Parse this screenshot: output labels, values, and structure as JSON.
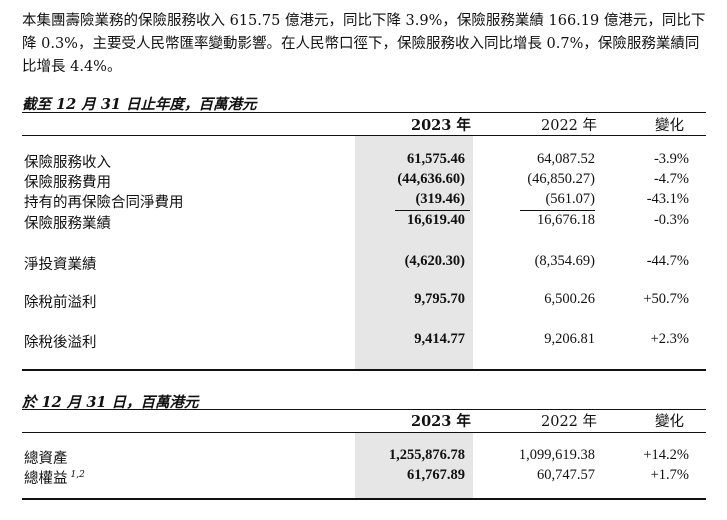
{
  "intro_paragraph": "本集團壽險業務的保險服務收入 615.75 億港元，同比下降 3.9%，保險服務業績 166.19 億港元，同比下降 0.3%，主要受人民幣匯率變動影響。在人民幣口徑下，保險服務收入同比增長 0.7%，保險服務業績同比增長 4.4%。",
  "table1": {
    "title": "截至 12 月 31 日止年度，百萬港元",
    "headers": {
      "y2023": "2023 年",
      "y2022": "2022 年",
      "change": "變化"
    },
    "rows": [
      {
        "label": "保險服務收入",
        "v2023": "61,575.46",
        "v2022": "64,087.52",
        "change": "-3.9%"
      },
      {
        "label": "保險服務費用",
        "v2023": "(44,636.60)",
        "v2022": "(46,850.27)",
        "change": "-4.7%"
      },
      {
        "label": "持有的再保險合同淨費用",
        "v2023": "(319.46)",
        "v2022": "(561.07)",
        "change": "-43.1%"
      },
      {
        "label": "保險服務業績",
        "v2023": "16,619.40",
        "v2022": "16,676.18",
        "change": "-0.3%"
      },
      {
        "label": "淨投資業績",
        "v2023": "(4,620.30)",
        "v2022": "(8,354.69)",
        "change": "-44.7%"
      },
      {
        "label": "除稅前溢利",
        "v2023": "9,795.70",
        "v2022": "6,500.26",
        "change": "+50.7%"
      },
      {
        "label": "除稅後溢利",
        "v2023": "9,414.77",
        "v2022": "9,206.81",
        "change": "+2.3%"
      }
    ]
  },
  "table2": {
    "title": "於 12 月 31 日，百萬港元",
    "headers": {
      "y2023": "2023 年",
      "y2022": "2022 年",
      "change": "變化"
    },
    "rows": [
      {
        "label": "總資產",
        "sup": "",
        "v2023": "1,255,876.78",
        "v2022": "1,099,619.38",
        "change": "+14.2%"
      },
      {
        "label": "總權益",
        "sup": "1,2",
        "v2023": "61,767.89",
        "v2022": "60,747.57",
        "change": "+1.7%"
      }
    ]
  }
}
